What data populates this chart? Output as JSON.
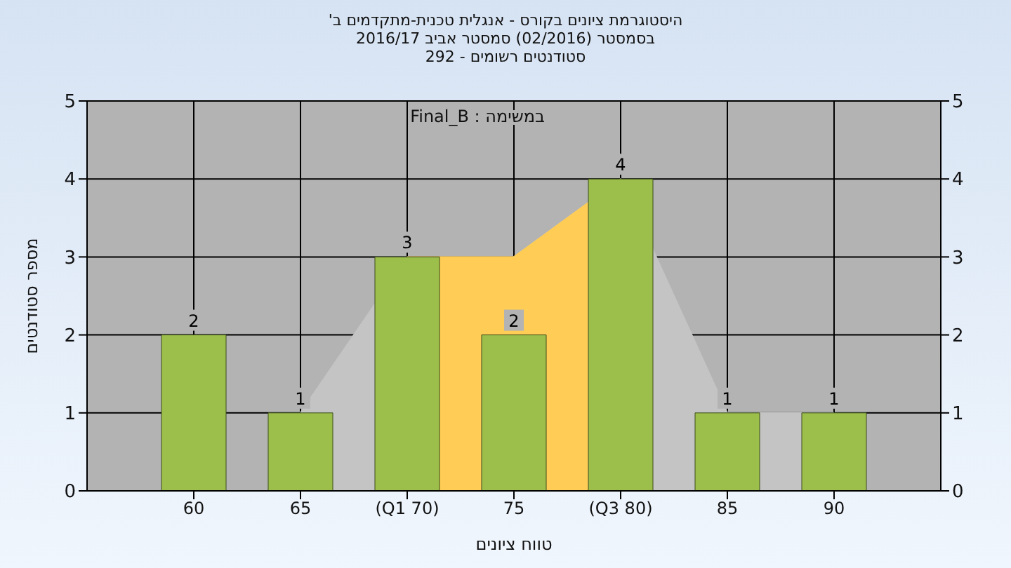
{
  "chart_data": {
    "type": "bar",
    "title": "היסטוגרמת ציונים בקורס - אנגלית טכנית-מתקדמים ב'",
    "subtitle": "בסמסטר (02/2016) סמסטר אביב 2016/17\nסטודנטים רשומים - 292",
    "xlabel": "טווח ציונים",
    "ylabel": "מספר סטודנטים",
    "annotations": [
      "במשימה : Final_B"
    ],
    "categories": [
      "60",
      "65",
      "(Q1 70)",
      "75",
      "(Q3 80)",
      "85",
      "90"
    ],
    "series": [
      {
        "type": "area",
        "color": "#c4c4c4",
        "values": [
          null,
          1,
          3,
          3,
          4,
          1,
          1
        ]
      },
      {
        "type": "area",
        "color": "#ffcc55",
        "values": [
          null,
          null,
          3,
          3,
          4,
          null,
          null
        ]
      },
      {
        "color": "#9cbf4c",
        "values": [
          2,
          1,
          3,
          2,
          4,
          1,
          1
        ],
        "value_labels": [
          "2",
          "1",
          "3",
          "2",
          "4",
          "1",
          "1"
        ]
      }
    ],
    "ylim": [
      0,
      5
    ],
    "yticks": [
      0,
      1,
      2,
      3,
      4,
      5
    ],
    "y2lim": [
      0,
      5
    ],
    "y2ticks": [
      0,
      1,
      2,
      3,
      4,
      5
    ],
    "grid": true
  }
}
